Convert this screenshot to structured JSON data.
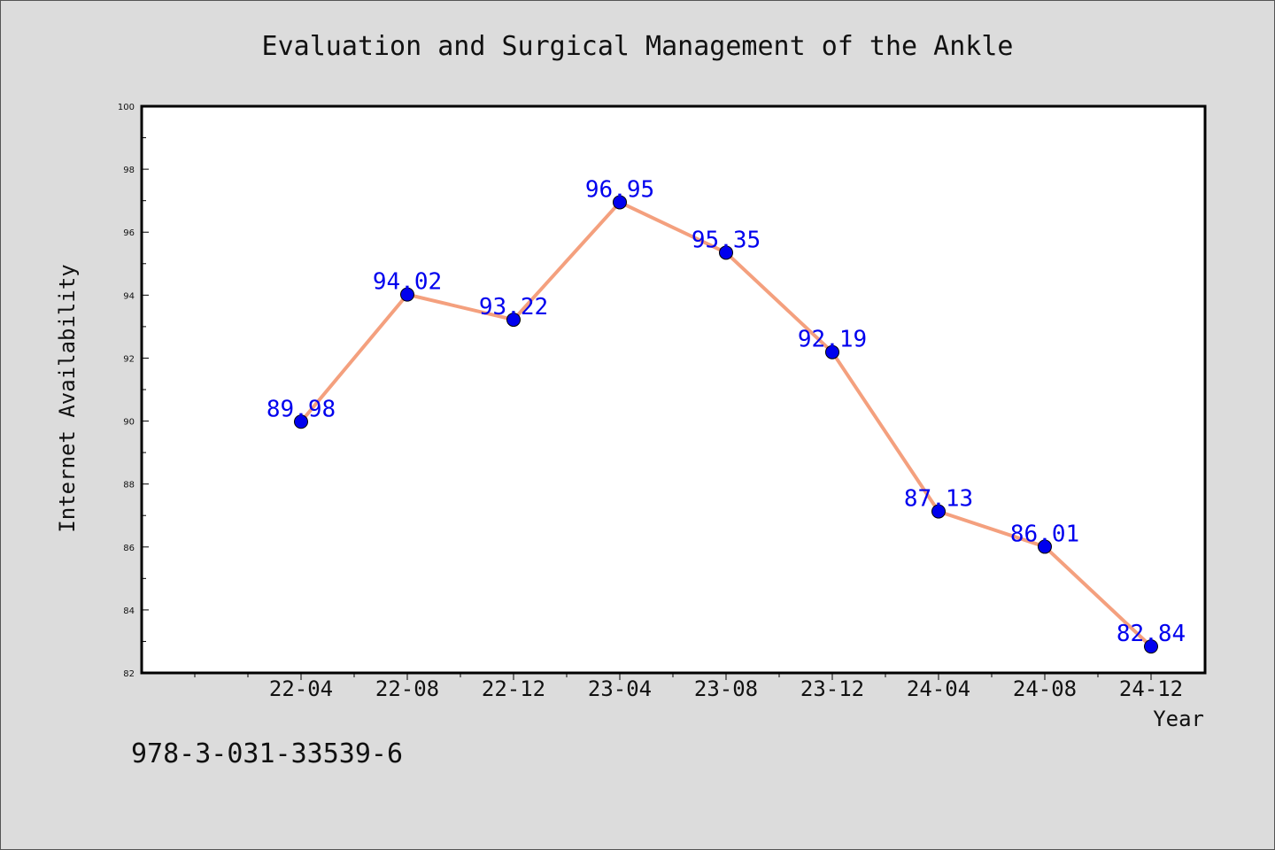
{
  "chart_data": {
    "type": "line",
    "title": "Evaluation and Surgical Management of the Ankle",
    "xlabel": "Year",
    "ylabel": "Internet Availability",
    "categories": [
      "22-04",
      "22-08",
      "22-12",
      "23-04",
      "23-08",
      "23-12",
      "24-04",
      "24-08",
      "24-12"
    ],
    "series": [
      {
        "values": [
          89.98,
          94.02,
          93.22,
          96.95,
          95.35,
          92.19,
          87.13,
          86.01,
          82.84
        ],
        "labels": [
          "89.98",
          "94.02",
          "93.22",
          "96.95",
          "95.35",
          "92.19",
          "87.13",
          "86.01",
          "82.84"
        ],
        "line_color": "#f4a07e",
        "marker_color": "#0000ee",
        "label_color": "#0000ee"
      }
    ],
    "ylim": [
      82,
      100
    ],
    "yticks": [
      82,
      84,
      86,
      88,
      90,
      92,
      94,
      96,
      98,
      100
    ],
    "ytick_labels": [
      "82",
      "84",
      "86",
      "88",
      "90",
      "92",
      "94",
      "96",
      "98",
      "100"
    ],
    "grid": false,
    "legend": false
  },
  "footer": {
    "isbn": "978-3-031-33539-6"
  }
}
